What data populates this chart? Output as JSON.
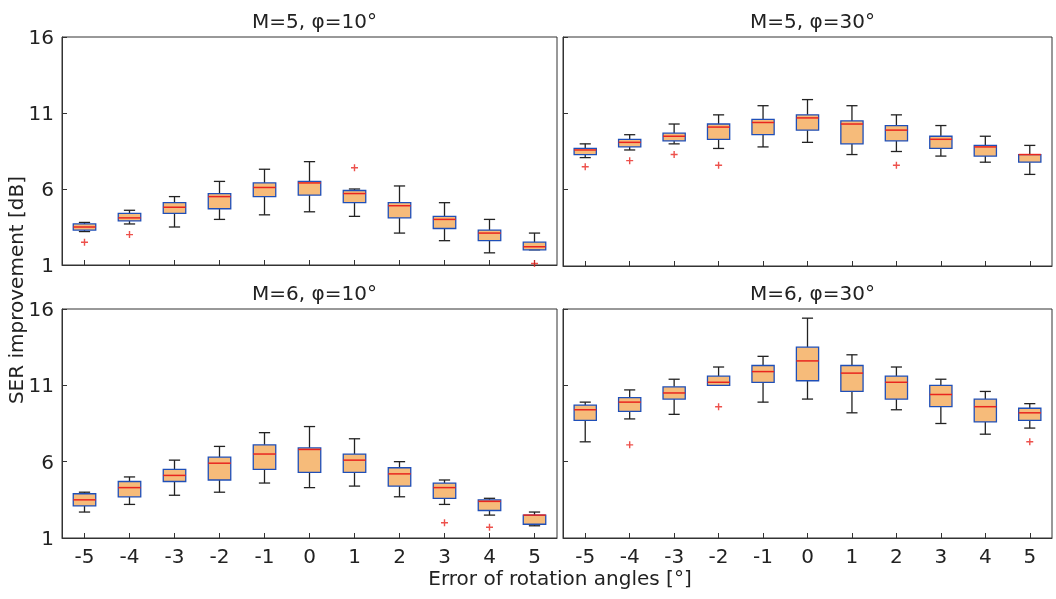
{
  "chart_data": [
    {
      "type": "box",
      "title": "M=5, φ=10°",
      "ylabel": "SER improvement [dB]",
      "categories": [
        "-5",
        "-4",
        "-3",
        "-2",
        "-1",
        "0",
        "1",
        "2",
        "3",
        "4",
        "5"
      ],
      "color": "#f6bb7a",
      "ylim": [
        1,
        16
      ],
      "yticks": [
        1,
        6,
        11,
        16
      ],
      "marker": "cross",
      "tick_labels": "y",
      "boxes": [
        {
          "low": 3.2,
          "q1": 3.3,
          "median": 3.5,
          "q3": 3.7,
          "high": 3.8,
          "outliers": [
            2.5
          ]
        },
        {
          "low": 3.7,
          "q1": 3.9,
          "median": 4.1,
          "q3": 4.4,
          "high": 4.6,
          "outliers": [
            3.0
          ]
        },
        {
          "low": 3.5,
          "q1": 4.4,
          "median": 4.8,
          "q3": 5.1,
          "high": 5.5
        },
        {
          "low": 4.0,
          "q1": 4.7,
          "median": 5.5,
          "q3": 5.7,
          "high": 6.5
        },
        {
          "low": 4.3,
          "q1": 5.5,
          "median": 6.1,
          "q3": 6.4,
          "high": 7.3
        },
        {
          "low": 4.5,
          "q1": 5.6,
          "median": 6.4,
          "q3": 6.5,
          "high": 7.8
        },
        {
          "low": 4.2,
          "q1": 5.1,
          "median": 5.7,
          "q3": 5.9,
          "high": 6.0,
          "outliers": [
            7.4
          ]
        },
        {
          "low": 3.1,
          "q1": 4.1,
          "median": 4.9,
          "q3": 5.1,
          "high": 6.2
        },
        {
          "low": 2.6,
          "q1": 3.4,
          "median": 4.0,
          "q3": 4.2,
          "high": 5.1
        },
        {
          "low": 1.8,
          "q1": 2.6,
          "median": 3.1,
          "q3": 3.3,
          "high": 4.0
        },
        {
          "low": 2.0,
          "q1": 2.0,
          "median": 2.2,
          "q3": 2.5,
          "high": 3.1,
          "outliers": [
            1.1
          ]
        }
      ]
    },
    {
      "type": "box",
      "title": "M=5, φ=30°",
      "categories": [
        "-5",
        "-4",
        "-3",
        "-2",
        "-1",
        "0",
        "1",
        "2",
        "3",
        "4",
        "5"
      ],
      "color": "#f6bb7a",
      "ylim": [
        1,
        16
      ],
      "yticks": [
        1,
        6,
        11,
        16
      ],
      "marker": "cross",
      "tick_labels": false,
      "boxes": [
        {
          "low": 8.1,
          "q1": 8.3,
          "median": 8.6,
          "q3": 8.7,
          "high": 9.0,
          "outliers": [
            7.5
          ]
        },
        {
          "low": 8.6,
          "q1": 8.8,
          "median": 9.1,
          "q3": 9.3,
          "high": 9.6,
          "outliers": [
            7.9
          ]
        },
        {
          "low": 9.0,
          "q1": 9.2,
          "median": 9.5,
          "q3": 9.7,
          "high": 10.3,
          "outliers": [
            8.3
          ]
        },
        {
          "low": 8.7,
          "q1": 9.3,
          "median": 10.1,
          "q3": 10.3,
          "high": 10.9,
          "outliers": [
            7.6
          ]
        },
        {
          "low": 8.8,
          "q1": 9.6,
          "median": 10.4,
          "q3": 10.6,
          "high": 11.5
        },
        {
          "low": 9.1,
          "q1": 9.9,
          "median": 10.7,
          "q3": 10.9,
          "high": 11.9
        },
        {
          "low": 8.3,
          "q1": 9.0,
          "median": 10.3,
          "q3": 10.5,
          "high": 11.5
        },
        {
          "low": 8.5,
          "q1": 9.2,
          "median": 9.9,
          "q3": 10.2,
          "high": 10.9,
          "outliers": [
            7.6
          ]
        },
        {
          "low": 8.2,
          "q1": 8.7,
          "median": 9.3,
          "q3": 9.5,
          "high": 10.2
        },
        {
          "low": 7.8,
          "q1": 8.2,
          "median": 8.8,
          "q3": 8.9,
          "high": 9.5
        },
        {
          "low": 7.0,
          "q1": 7.8,
          "median": 8.3,
          "q3": 8.3,
          "high": 8.9
        }
      ]
    },
    {
      "type": "box",
      "title": "M=6, φ=10°",
      "xlabel": "Error of rotation angles [°]",
      "categories": [
        "-5",
        "-4",
        "-3",
        "-2",
        "-1",
        "0",
        "1",
        "2",
        "3",
        "4",
        "5"
      ],
      "color": "#f6bb7a",
      "ylim": [
        1,
        16
      ],
      "yticks": [
        1,
        6,
        11,
        16
      ],
      "marker": "cross",
      "boxes": [
        {
          "low": 2.7,
          "q1": 3.1,
          "median": 3.5,
          "q3": 3.9,
          "high": 4.0
        },
        {
          "low": 3.2,
          "q1": 3.7,
          "median": 4.3,
          "q3": 4.7,
          "high": 5.0
        },
        {
          "low": 3.8,
          "q1": 4.7,
          "median": 5.1,
          "q3": 5.5,
          "high": 6.1
        },
        {
          "low": 4.0,
          "q1": 4.8,
          "median": 5.9,
          "q3": 6.3,
          "high": 7.0
        },
        {
          "low": 4.6,
          "q1": 5.5,
          "median": 6.5,
          "q3": 7.1,
          "high": 7.9
        },
        {
          "low": 4.3,
          "q1": 5.3,
          "median": 6.8,
          "q3": 6.9,
          "high": 8.3
        },
        {
          "low": 4.4,
          "q1": 5.3,
          "median": 6.1,
          "q3": 6.5,
          "high": 7.5
        },
        {
          "low": 3.7,
          "q1": 4.4,
          "median": 5.2,
          "q3": 5.6,
          "high": 6.0
        },
        {
          "low": 3.2,
          "q1": 3.6,
          "median": 4.3,
          "q3": 4.6,
          "high": 4.8,
          "outliers": [
            2.0
          ]
        },
        {
          "low": 2.5,
          "q1": 2.8,
          "median": 3.4,
          "q3": 3.5,
          "high": 3.6,
          "outliers": [
            1.7
          ]
        },
        {
          "low": 1.8,
          "q1": 1.9,
          "median": 2.5,
          "q3": 2.5,
          "high": 2.7
        }
      ]
    },
    {
      "type": "box",
      "title": "M=6, φ=30°",
      "categories": [
        "-5",
        "-4",
        "-3",
        "-2",
        "-1",
        "0",
        "1",
        "2",
        "3",
        "4",
        "5"
      ],
      "color": "#f6bb7a",
      "ylim": [
        1,
        16
      ],
      "yticks": [
        1,
        6,
        11,
        16
      ],
      "marker": "cross",
      "tick_labels": "x",
      "boxes": [
        {
          "low": 7.3,
          "q1": 8.7,
          "median": 9.4,
          "q3": 9.7,
          "high": 9.9
        },
        {
          "low": 8.8,
          "q1": 9.3,
          "median": 9.9,
          "q3": 10.2,
          "high": 10.7,
          "outliers": [
            7.1
          ]
        },
        {
          "low": 9.1,
          "q1": 10.1,
          "median": 10.5,
          "q3": 10.9,
          "high": 11.4
        },
        {
          "low": 11.0,
          "q1": 11.0,
          "median": 11.2,
          "q3": 11.6,
          "high": 12.2,
          "outliers": [
            9.6
          ]
        },
        {
          "low": 9.9,
          "q1": 11.2,
          "median": 11.9,
          "q3": 12.3,
          "high": 12.9
        },
        {
          "low": 10.1,
          "q1": 11.3,
          "median": 12.6,
          "q3": 13.5,
          "high": 15.4
        },
        {
          "low": 9.2,
          "q1": 10.6,
          "median": 11.8,
          "q3": 12.3,
          "high": 13.0
        },
        {
          "low": 9.4,
          "q1": 10.1,
          "median": 11.2,
          "q3": 11.6,
          "high": 12.2
        },
        {
          "low": 8.5,
          "q1": 9.6,
          "median": 10.4,
          "q3": 11.0,
          "high": 11.4
        },
        {
          "low": 7.8,
          "q1": 8.6,
          "median": 9.6,
          "q3": 10.1,
          "high": 10.6
        },
        {
          "low": 8.2,
          "q1": 8.7,
          "median": 9.2,
          "q3": 9.5,
          "high": 9.8,
          "outliers": [
            7.3
          ]
        }
      ]
    }
  ]
}
